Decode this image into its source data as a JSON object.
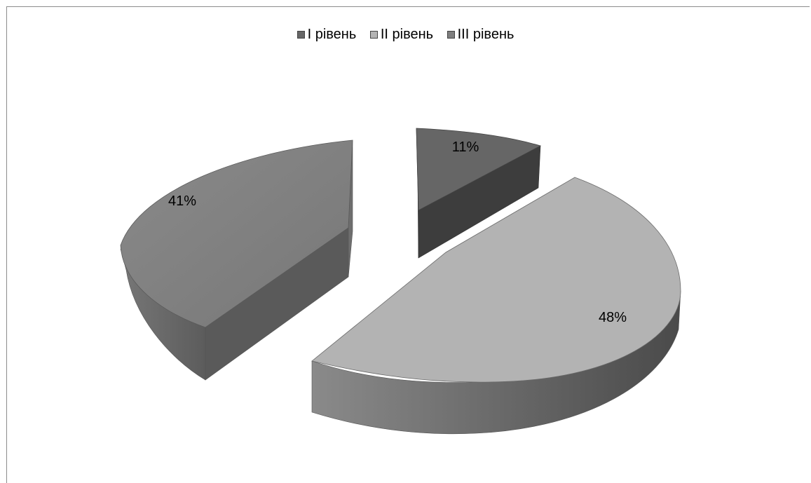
{
  "chart_data": {
    "type": "pie",
    "style": "3d-exploded",
    "legend_position": "top",
    "categories": [
      "I рівень",
      "II рівень",
      "III рівень"
    ],
    "values": [
      11,
      48,
      41
    ],
    "data_labels": [
      "11%",
      "48%",
      "41%"
    ],
    "colors": {
      "I рівень": "#666666",
      "II рівень": "#b3b3b3",
      "III рівень": "#7f7f7f"
    }
  }
}
